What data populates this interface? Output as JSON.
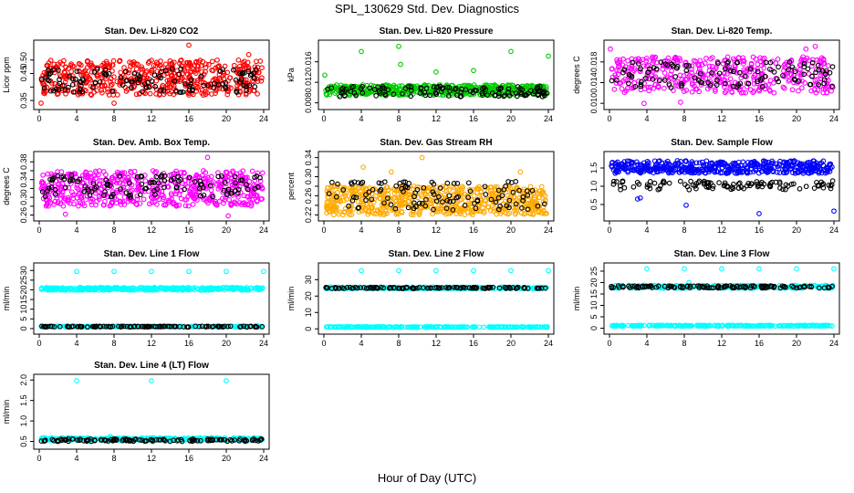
{
  "figure": {
    "title": "SPL_130629  Std. Dev. Diagnostics",
    "xlabel": "Hour of Day (UTC)"
  },
  "chart_data": [
    {
      "type": "scatter",
      "title": "Stan. Dev. Li-820 CO2",
      "ylabel": "Licor ppm",
      "xlim": [
        0,
        24
      ],
      "xticks": [
        0,
        4,
        8,
        12,
        16,
        20,
        24
      ],
      "ylim": [
        0.33,
        0.56
      ],
      "yticks": [
        0.35,
        0.4,
        0.45,
        0.5
      ],
      "ytick_labels": [
        "0.35",
        "",
        "0.45",
        "0.50"
      ],
      "series": [
        {
          "color": "#ff0000",
          "band": [
            0.37,
            0.5
          ],
          "n": 520,
          "outliers": [
            [
              0.2,
              0.34
            ],
            [
              8.0,
              0.34
            ],
            [
              16.0,
              0.555
            ],
            [
              22.4,
              0.52
            ]
          ]
        },
        {
          "color": "#000000",
          "band": [
            0.38,
            0.47
          ],
          "n": 120,
          "outliers": []
        }
      ]
    },
    {
      "type": "scatter",
      "title": "Stan. Dev. Li-820 Pressure",
      "ylabel": "kPa",
      "xlim": [
        0,
        24
      ],
      "xticks": [
        0,
        4,
        8,
        12,
        16,
        20,
        24
      ],
      "ylim": [
        0.0074,
        0.0195
      ],
      "yticks": [
        0.008,
        0.012,
        0.016
      ],
      "ytick_labels": [
        "0.008",
        "0.012",
        "0.016"
      ],
      "series": [
        {
          "color": "#00cc00",
          "band": [
            0.0095,
            0.0115
          ],
          "n": 480,
          "outliers": [
            [
              0.1,
              0.0134
            ],
            [
              4.0,
              0.018
            ],
            [
              8.0,
              0.019
            ],
            [
              8.2,
              0.0155
            ],
            [
              16.0,
              0.0143
            ],
            [
              20.0,
              0.018
            ],
            [
              24.0,
              0.0171
            ],
            [
              12.0,
              0.014
            ]
          ]
        },
        {
          "color": "#000000",
          "band": [
            0.0092,
            0.0112
          ],
          "n": 120,
          "outliers": []
        }
      ]
    },
    {
      "type": "scatter",
      "title": "Stan. Dev. Li-820 Temp.",
      "ylabel": "degrees C",
      "xlim": [
        0,
        24
      ],
      "xticks": [
        0,
        4,
        8,
        12,
        16,
        20,
        24
      ],
      "ylim": [
        0.0095,
        0.0215
      ],
      "yticks": [
        0.01,
        0.014,
        0.018
      ],
      "ytick_labels": [
        "0.010",
        "0.014",
        "0.018"
      ],
      "series": [
        {
          "color": "#ff00ff",
          "band": [
            0.012,
            0.019
          ],
          "n": 420,
          "outliers": [
            [
              0.1,
              0.0205
            ],
            [
              21.0,
              0.0205
            ],
            [
              22.0,
              0.021
            ],
            [
              3.7,
              0.01
            ],
            [
              7.6,
              0.0102
            ]
          ]
        },
        {
          "color": "#000000",
          "band": [
            0.013,
            0.018
          ],
          "n": 110,
          "outliers": []
        }
      ]
    },
    {
      "type": "scatter",
      "title": "Stan. Dev. Amb. Box Temp.",
      "ylabel": "degrees C",
      "xlim": [
        0,
        24
      ],
      "xticks": [
        0,
        4,
        8,
        12,
        16,
        20,
        24
      ],
      "ylim": [
        0.255,
        0.395
      ],
      "yticks": [
        0.26,
        0.28,
        0.3,
        0.32,
        0.34,
        0.36,
        0.38
      ],
      "ytick_labels": [
        "0.26",
        "",
        "0.30",
        "",
        "0.34",
        "",
        "0.38"
      ],
      "series": [
        {
          "color": "#ff00ff",
          "band": [
            0.28,
            0.36
          ],
          "n": 560,
          "outliers": [
            [
              18.0,
              0.39
            ],
            [
              20.2,
              0.258
            ],
            [
              2.8,
              0.262
            ]
          ]
        },
        {
          "color": "#000000",
          "band": [
            0.3,
            0.35
          ],
          "n": 110,
          "outliers": []
        }
      ]
    },
    {
      "type": "scatter",
      "title": "Stan. Dev. Gas Stream RH",
      "ylabel": "percent",
      "xlim": [
        0,
        24
      ],
      "xticks": [
        0,
        4,
        8,
        12,
        16,
        20,
        24
      ],
      "ylim": [
        0.215,
        0.345
      ],
      "yticks": [
        0.22,
        0.24,
        0.26,
        0.28,
        0.3,
        0.32,
        0.34
      ],
      "ytick_labels": [
        "0.22",
        "",
        "0.26",
        "",
        "0.30",
        "",
        "0.34"
      ],
      "series": [
        {
          "color": "#ffaa00",
          "band": [
            0.22,
            0.28
          ],
          "n": 620,
          "outliers": [
            [
              10.5,
              0.34
            ],
            [
              4.2,
              0.32
            ],
            [
              21.0,
              0.31
            ],
            [
              7.2,
              0.31
            ]
          ]
        },
        {
          "color": "#000000",
          "band": [
            0.23,
            0.29
          ],
          "n": 110,
          "outliers": []
        }
      ]
    },
    {
      "type": "scatter",
      "title": "Stan. Dev. Sample Flow",
      "ylabel": "",
      "xlim": [
        0,
        24
      ],
      "xticks": [
        0,
        4,
        8,
        12,
        16,
        20,
        24
      ],
      "ylim": [
        0.15,
        1.85
      ],
      "yticks": [
        0.5,
        1.0,
        1.5
      ],
      "ytick_labels": [
        "0.5",
        "1.0",
        "1.5"
      ],
      "series": [
        {
          "color": "#0000ff",
          "band": [
            1.35,
            1.7
          ],
          "n": 480,
          "outliers": [
            [
              16.0,
              0.25
            ],
            [
              24.0,
              0.32
            ],
            [
              8.2,
              0.48
            ],
            [
              3.0,
              0.65
            ],
            [
              3.3,
              0.68
            ]
          ]
        },
        {
          "color": "#000000",
          "band": [
            0.9,
            1.15
          ],
          "n": 110,
          "outliers": []
        }
      ]
    },
    {
      "type": "scatter",
      "title": "Stan. Dev. Line 1 Flow",
      "ylabel": "ml/min",
      "xlim": [
        0,
        24
      ],
      "xticks": [
        0,
        4,
        8,
        12,
        16,
        20,
        24
      ],
      "ylim": [
        -1,
        32
      ],
      "yticks": [
        0,
        5,
        10,
        15,
        20,
        25,
        30
      ],
      "ytick_labels": [
        "0",
        "5",
        "10",
        "15",
        "20",
        "25",
        "30"
      ],
      "series": [
        {
          "color": "#00ffff",
          "band": [
            19.8,
            21.2
          ],
          "n": 360,
          "outliers": [
            [
              4,
              29.5
            ],
            [
              8,
              29.5
            ],
            [
              12,
              29.5
            ],
            [
              16,
              29.5
            ],
            [
              20,
              29.5
            ],
            [
              24,
              29.5
            ]
          ]
        },
        {
          "color": "#00ffff",
          "band": [
            0.9,
            1.3
          ],
          "n": 220,
          "outliers": []
        },
        {
          "color": "#000000",
          "band": [
            0.8,
            1.2
          ],
          "n": 120,
          "outliers": []
        }
      ]
    },
    {
      "type": "scatter",
      "title": "Stan. Dev. Line 2 Flow",
      "ylabel": "ml/min",
      "xlim": [
        0,
        24
      ],
      "xticks": [
        0,
        4,
        8,
        12,
        16,
        20,
        24
      ],
      "ylim": [
        -1,
        38
      ],
      "yticks": [
        0,
        10,
        20,
        30
      ],
      "ytick_labels": [
        "0",
        "10",
        "20",
        "30"
      ],
      "series": [
        {
          "color": "#00ffff",
          "band": [
            24.5,
            25.5
          ],
          "n": 300,
          "outliers": [
            [
              4,
              35.5
            ],
            [
              8,
              35.5
            ],
            [
              12,
              35.5
            ],
            [
              16,
              35.5
            ],
            [
              20,
              35.5
            ],
            [
              24,
              35.5
            ]
          ]
        },
        {
          "color": "#00ffff",
          "band": [
            0.9,
            1.3
          ],
          "n": 260,
          "outliers": []
        },
        {
          "color": "#000000",
          "band": [
            24.6,
            25.4
          ],
          "n": 120,
          "outliers": []
        }
      ]
    },
    {
      "type": "scatter",
      "title": "Stan. Dev. Line 3 Flow",
      "ylabel": "ml/min",
      "xlim": [
        0,
        24
      ],
      "xticks": [
        0,
        4,
        8,
        12,
        16,
        20,
        24
      ],
      "ylim": [
        -1,
        27
      ],
      "yticks": [
        0,
        5,
        10,
        15,
        20,
        25
      ],
      "ytick_labels": [
        "0",
        "5",
        "10",
        "15",
        "20",
        "25"
      ],
      "series": [
        {
          "color": "#00ffff",
          "band": [
            17.5,
            18.8
          ],
          "n": 300,
          "outliers": [
            [
              4,
              26
            ],
            [
              8,
              26
            ],
            [
              12,
              26
            ],
            [
              16,
              26
            ],
            [
              20,
              26
            ],
            [
              24,
              26
            ],
            [
              8.5,
              20
            ]
          ]
        },
        {
          "color": "#00ffff",
          "band": [
            0.9,
            1.3
          ],
          "n": 260,
          "outliers": []
        },
        {
          "color": "#000000",
          "band": [
            17.6,
            18.6
          ],
          "n": 120,
          "outliers": []
        }
      ]
    },
    {
      "type": "scatter",
      "title": "Stan. Dev. Line 4 (LT) Flow",
      "ylabel": "ml/min",
      "xlim": [
        0,
        24
      ],
      "xticks": [
        0,
        4,
        8,
        12,
        16,
        20,
        24
      ],
      "ylim": [
        0.4,
        2.05
      ],
      "yticks": [
        0.5,
        1.0,
        1.5,
        2.0
      ],
      "ytick_labels": [
        "0.5",
        "1.0",
        "1.5",
        "2.0"
      ],
      "series": [
        {
          "color": "#00ffff",
          "band": [
            0.53,
            0.59
          ],
          "n": 300,
          "outliers": [
            [
              4,
              1.98
            ],
            [
              12,
              1.98
            ],
            [
              20,
              1.98
            ],
            [
              7.6,
              0.62
            ]
          ]
        },
        {
          "color": "#000000",
          "band": [
            0.5,
            0.56
          ],
          "n": 120,
          "outliers": []
        }
      ]
    }
  ]
}
